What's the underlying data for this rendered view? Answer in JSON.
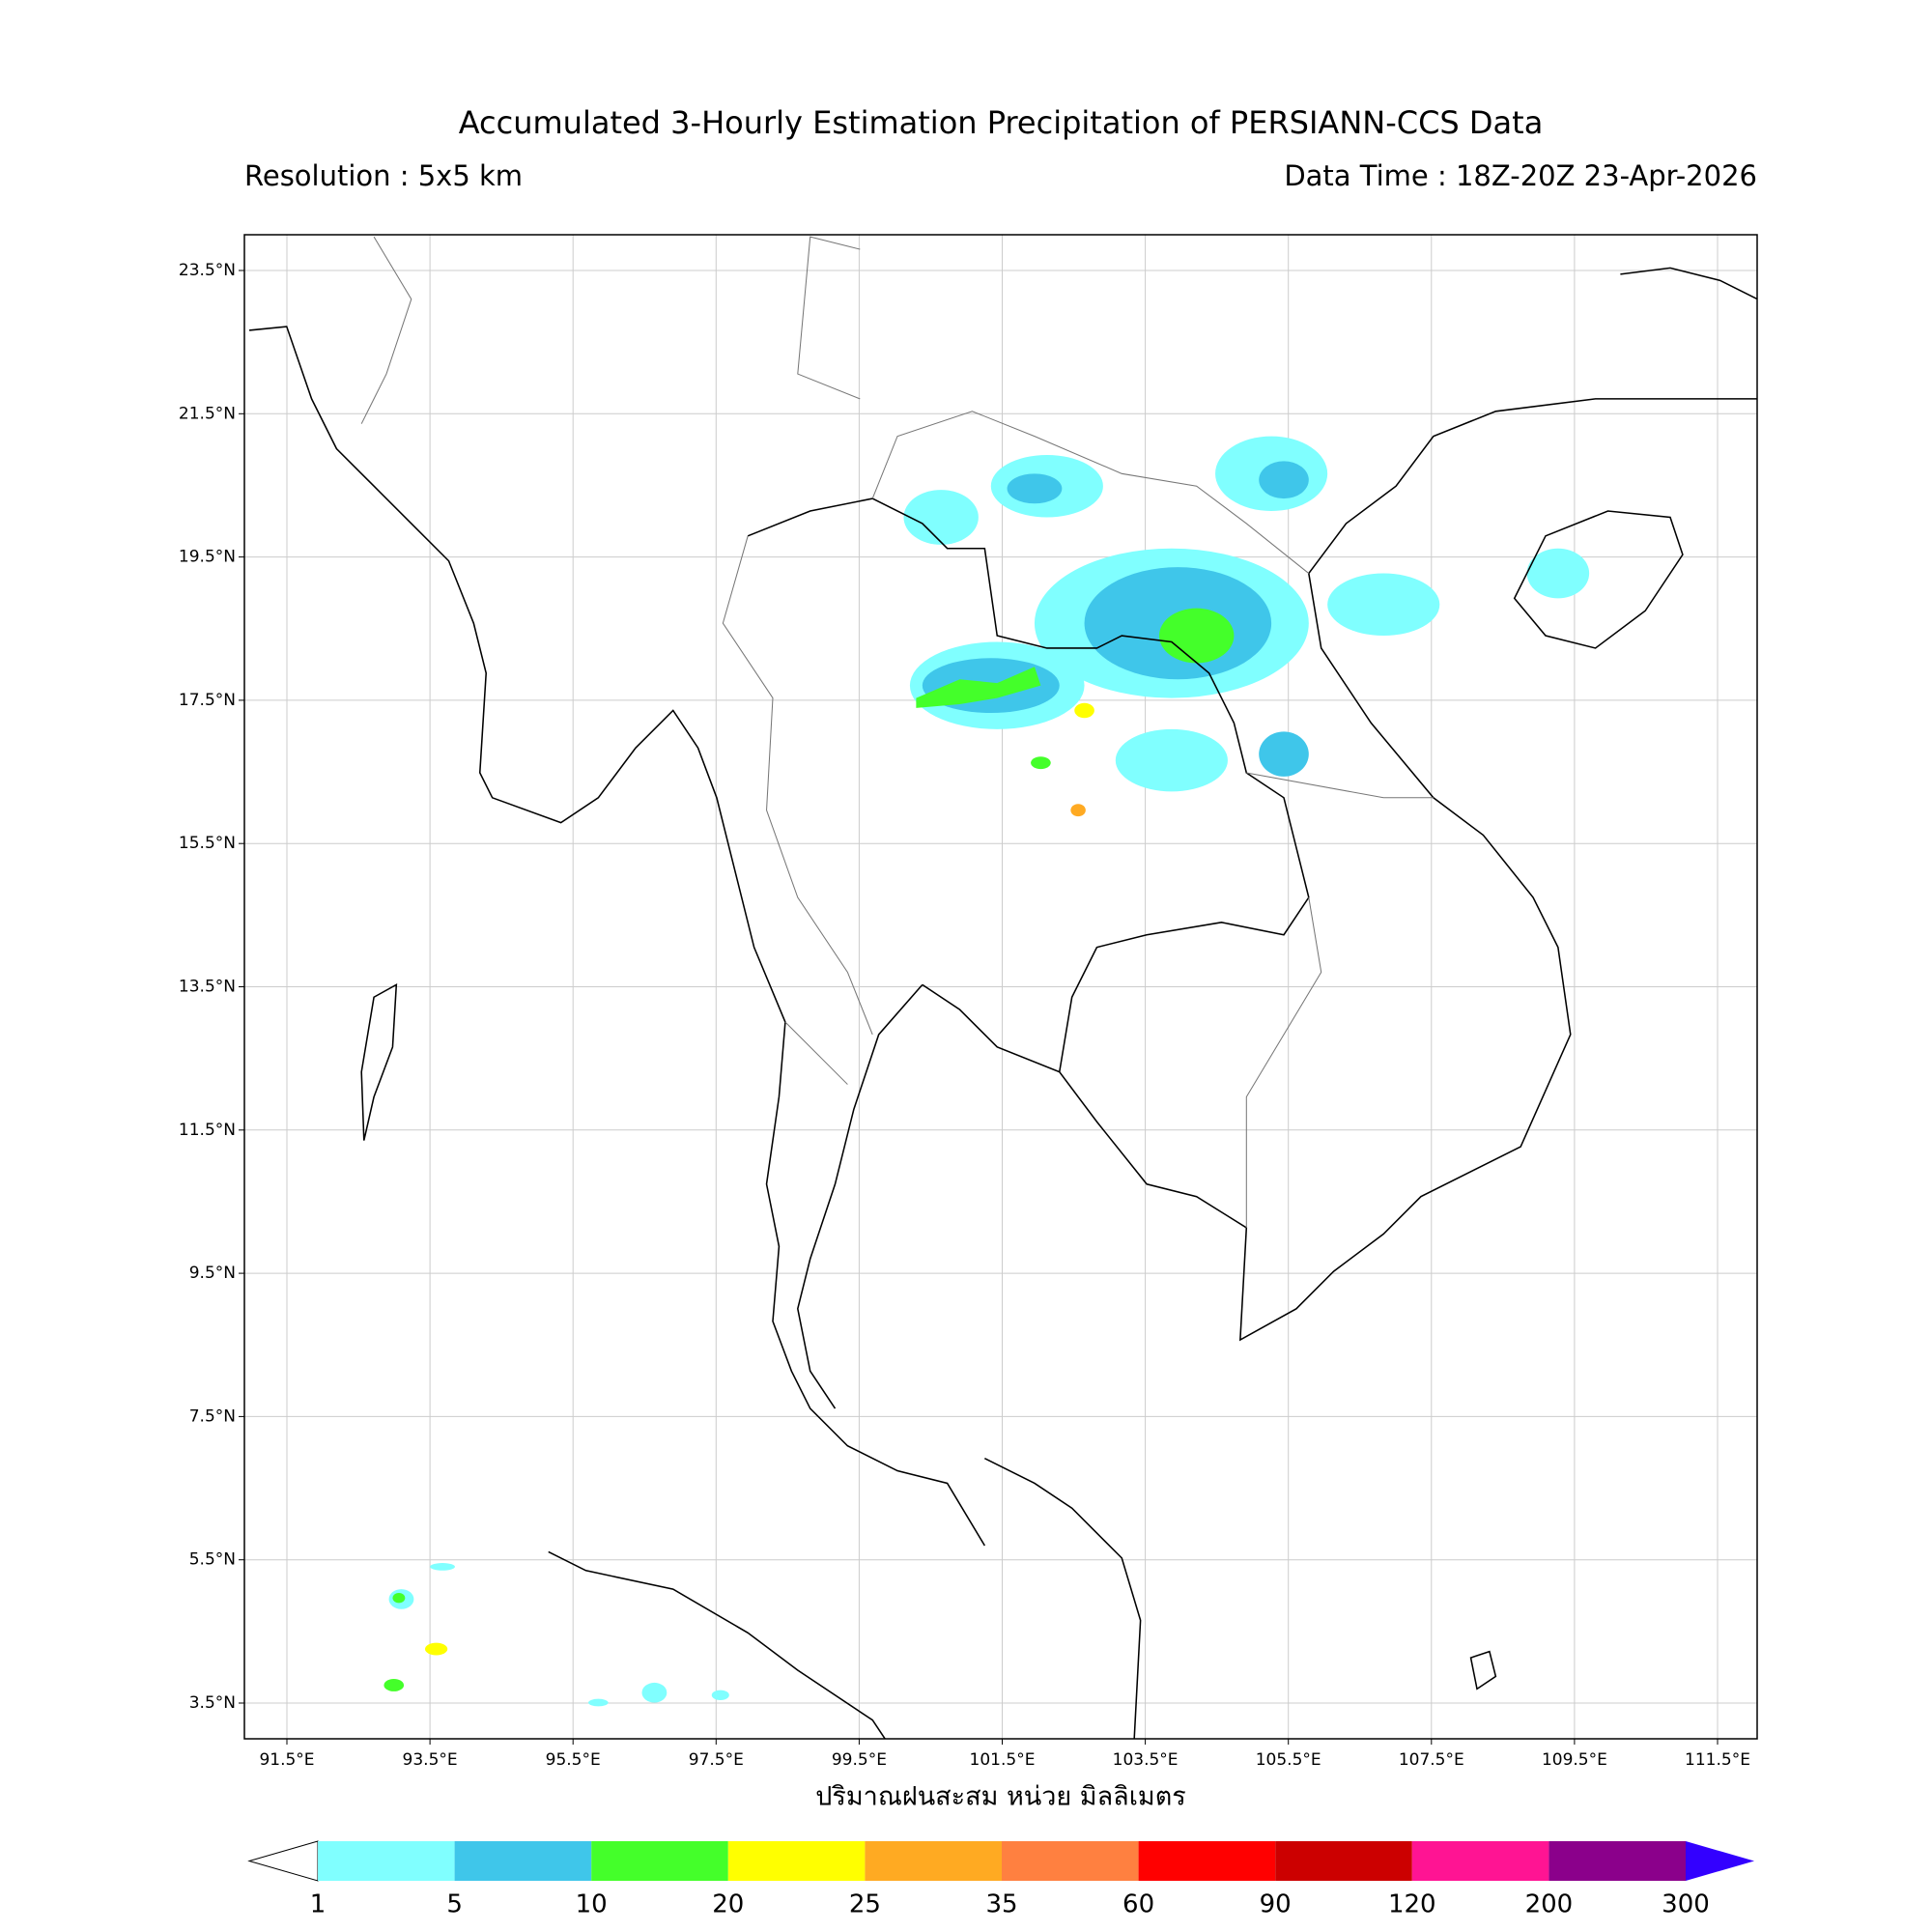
{
  "header": {
    "title": "Accumulated 3-Hourly Estimation Precipitation of PERSIANN-CCS Data",
    "resolution": "Resolution : 5x5 km",
    "data_time": "Data Time : 18Z-20Z 23-Apr-2026"
  },
  "map": {
    "lat_ticks": [
      "23.5°N",
      "21.5°N",
      "19.5°N",
      "17.5°N",
      "15.5°N",
      "13.5°N",
      "11.5°N",
      "9.5°N",
      "7.5°N",
      "5.5°N",
      "3.5°N"
    ],
    "lon_ticks": [
      "91.5°E",
      "93.5°E",
      "95.5°E",
      "97.5°E",
      "99.5°E",
      "101.5°E",
      "103.5°E",
      "105.5°E",
      "107.5°E",
      "109.5°E",
      "111.5°E"
    ],
    "x_label": "ปริมาณฝนสะสม หน่วย มิลลิเมตร"
  },
  "colorbar": {
    "labels": [
      "1",
      "5",
      "10",
      "20",
      "25",
      "35",
      "60",
      "90",
      "120",
      "200",
      "300"
    ],
    "colors": [
      "#80ffff",
      "#3fc6ea",
      "#44ff2a",
      "#ffff00",
      "#ffaa22",
      "#ff8040",
      "#ff0000",
      "#cc0000",
      "#ff1493",
      "#8b008b"
    ],
    "under_color": "#ffffff",
    "over_color": "#3300ff"
  }
}
